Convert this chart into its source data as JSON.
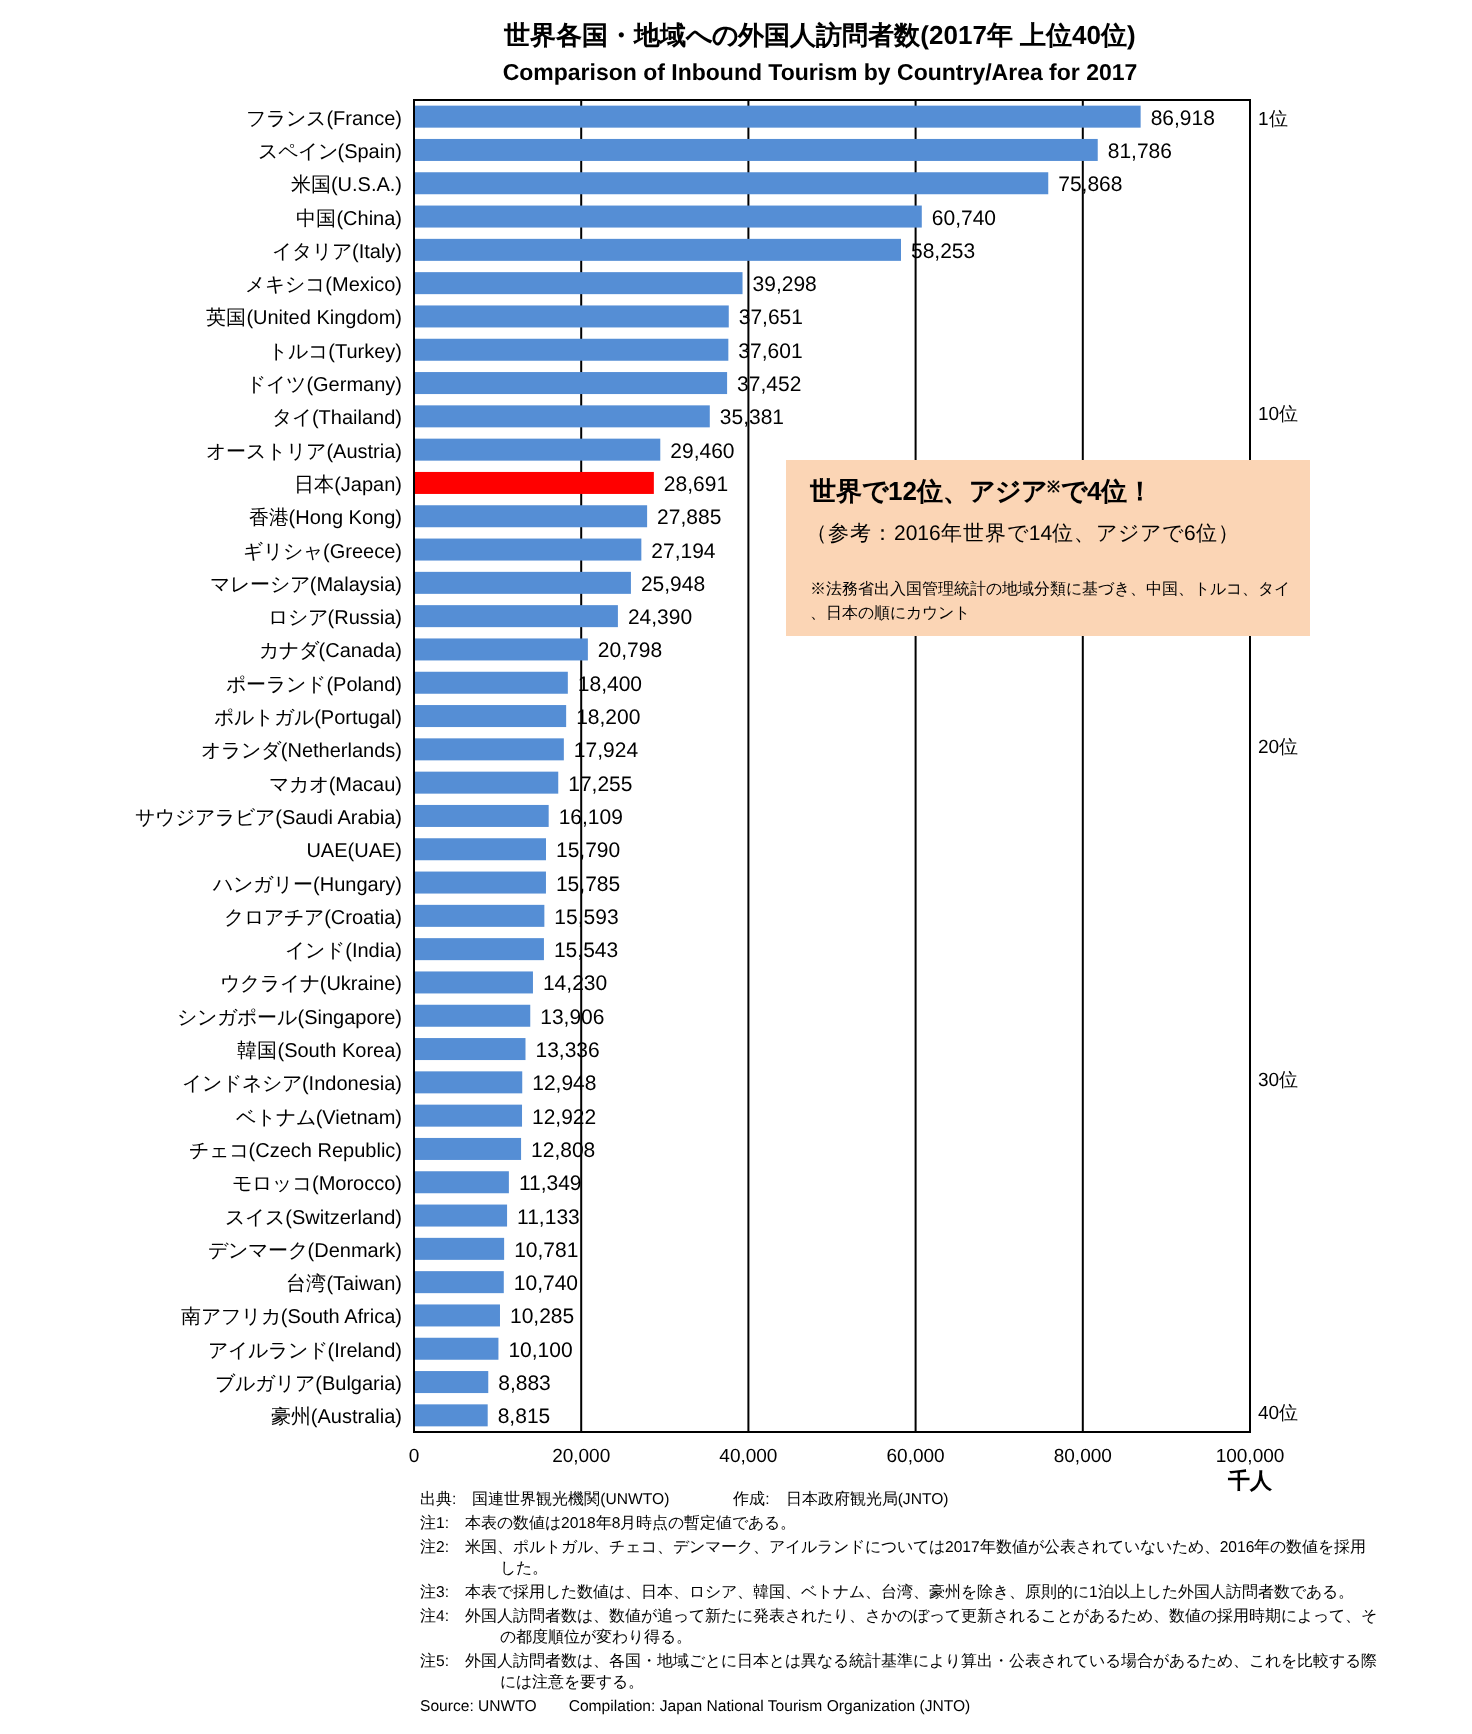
{
  "chart_data": {
    "type": "bar",
    "orientation": "horizontal",
    "title": "世界各国・地域への外国人訪問者数(2017年 上位40位)",
    "subtitle": "Comparison of Inbound Tourism by Country/Area for 2017",
    "xlabel": "千人",
    "categories": [
      "フランス(France)",
      "スペイン(Spain)",
      "米国(U.S.A.)",
      "中国(China)",
      "イタリア(Italy)",
      "メキシコ(Mexico)",
      "英国(United Kingdom)",
      "トルコ(Turkey)",
      "ドイツ(Germany)",
      "タイ(Thailand)",
      "オーストリア(Austria)",
      "日本(Japan)",
      "香港(Hong Kong)",
      "ギリシャ(Greece)",
      "マレーシア(Malaysia)",
      "ロシア(Russia)",
      "カナダ(Canada)",
      "ポーランド(Poland)",
      "ポルトガル(Portugal)",
      "オランダ(Netherlands)",
      "マカオ(Macau)",
      "サウジアラビア(Saudi Arabia)",
      "UAE(UAE)",
      "ハンガリー(Hungary)",
      "クロアチア(Croatia)",
      "インド(India)",
      "ウクライナ(Ukraine)",
      "シンガポール(Singapore)",
      "韓国(South Korea)",
      "インドネシア(Indonesia)",
      "ベトナム(Vietnam)",
      "チェコ(Czech Republic)",
      "モロッコ(Morocco)",
      "スイス(Switzerland)",
      "デンマーク(Denmark)",
      "台湾(Taiwan)",
      "南アフリカ(South Africa)",
      "アイルランド(Ireland)",
      "ブルガリア(Bulgaria)",
      "豪州(Australia)"
    ],
    "values": [
      86918,
      81786,
      75868,
      60740,
      58253,
      39298,
      37651,
      37601,
      37452,
      35381,
      29460,
      28691,
      27885,
      27194,
      25948,
      24390,
      20798,
      18400,
      18200,
      17924,
      17255,
      16109,
      15790,
      15785,
      15593,
      15543,
      14230,
      13906,
      13336,
      12948,
      12922,
      12808,
      11349,
      11133,
      10781,
      10740,
      10285,
      10100,
      8883,
      8815
    ],
    "colors": [
      "#558ed5",
      "#558ed5",
      "#558ed5",
      "#558ed5",
      "#558ed5",
      "#558ed5",
      "#558ed5",
      "#558ed5",
      "#558ed5",
      "#558ed5",
      "#558ed5",
      "#ff0000",
      "#558ed5",
      "#558ed5",
      "#558ed5",
      "#558ed5",
      "#558ed5",
      "#558ed5",
      "#558ed5",
      "#558ed5",
      "#558ed5",
      "#558ed5",
      "#558ed5",
      "#558ed5",
      "#558ed5",
      "#558ed5",
      "#558ed5",
      "#558ed5",
      "#558ed5",
      "#558ed5",
      "#558ed5",
      "#558ed5",
      "#558ed5",
      "#558ed5",
      "#558ed5",
      "#558ed5",
      "#558ed5",
      "#558ed5",
      "#558ed5",
      "#558ed5"
    ],
    "value_labels": [
      "86,918",
      "81,786",
      "75,868",
      "60,740",
      "58,253",
      "39,298",
      "37,651",
      "37,601",
      "37,452",
      "35,381",
      "29,460",
      "28,691",
      "27,885",
      "27,194",
      "25,948",
      "24,390",
      "20,798",
      "18,400",
      "18,200",
      "17,924",
      "17,255",
      "16,109",
      "15,790",
      "15,785",
      "15,593",
      "15,543",
      "14,230",
      "13,906",
      "13,336",
      "12,948",
      "12,922",
      "12,808",
      "11,349",
      "11,133",
      "10,781",
      "10,740",
      "10,285",
      "10,100",
      "8,883",
      "8,815"
    ],
    "grid": "x",
    "xlim": [
      0,
      100000
    ],
    "xticks": [
      0,
      {
        "value": 20000,
        "label": "20,000"
      },
      {
        "value": 40000,
        "label": "40,000"
      },
      {
        "value": 60000,
        "label": "60,000"
      },
      {
        "value": 80000,
        "label": "80,000"
      },
      {
        "value": 100000,
        "label": "100,000"
      }
    ],
    "annotations": [
      "世界で12位、アジア$^{※}$で4位！",
      "（参考：2016年世界で14位、アジアで6位）",
      "※法務省出入国管理統計の地域分類に基づき、中国、トルコ、タイ、日本の順にカウント",
      "1位",
      "10位",
      "20位",
      "30位",
      "40位",
      "出典:　国連世界観光機関(UNWTO)　　　　作成:　日本政府観光局(JNTO)",
      "注1:　本表の数値は2018年8月時点の暫定値である。",
      "注2:　米国、ポルトガル、チェコ、デンマーク、アイルランドについては2017年数値が公表されていないため、2016年の数値を採用した。",
      "注3:　本表で採用した数値は、日本、ロシア、韓国、ベトナム、台湾、豪州を除き、原則的に1泊以上した外国人訪問者数である。",
      "注4:　外国人訪問者数は、数値が追って新たに発表されたり、さかのぼって更新されることがあるため、数値の採用時期によって、その都度順位が変わり得る。",
      "注5:　外国人訪問者数は、各国・地域ごとに日本とは異なる統計基準により算出・公表されている場合があるため、これを比較する際には注意を要する。",
      "Source: UNWTO　　Compilation: Japan National Tourism Organization (JNTO)"
    ]
  }
}
